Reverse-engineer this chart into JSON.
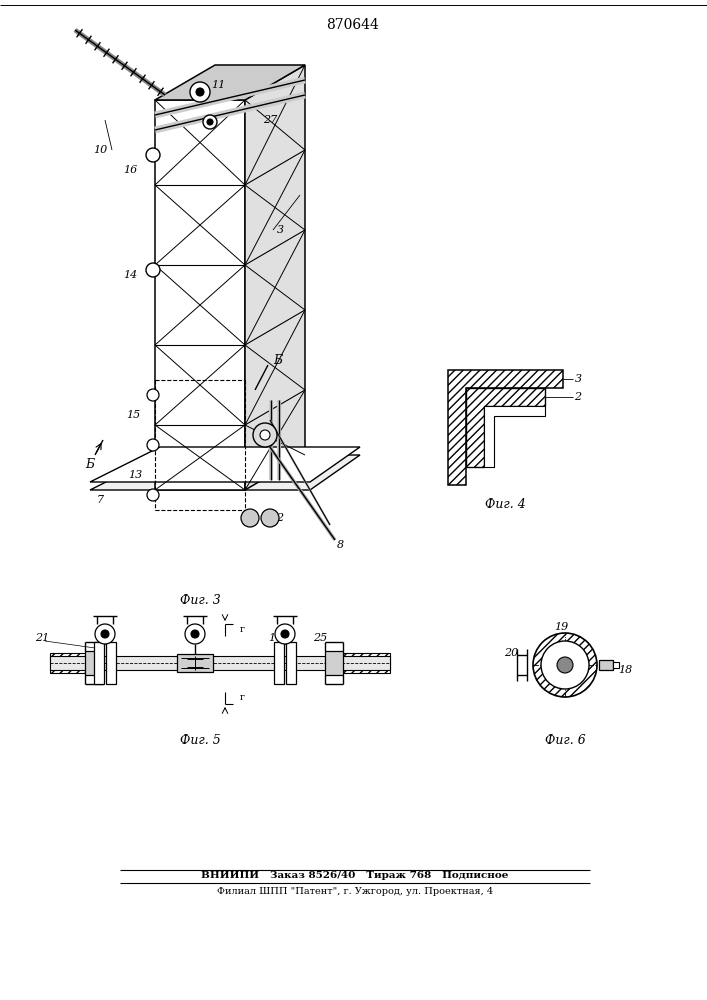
{
  "title": "870644",
  "footer_line1": "ВНИИПИ   Заказ 8526/40   Тираж 768   Подписное",
  "footer_line2": "Филиал ШПП \"Патент\", г. Ужгород, ул. Проектная, 4",
  "fig3_label": "Фиг. 3",
  "fig4_label": "Фиг. 4",
  "fig5_label": "Фиг. 5",
  "fig6_label": "Фиг. 6",
  "bg_color": "#ffffff",
  "line_color": "#000000"
}
